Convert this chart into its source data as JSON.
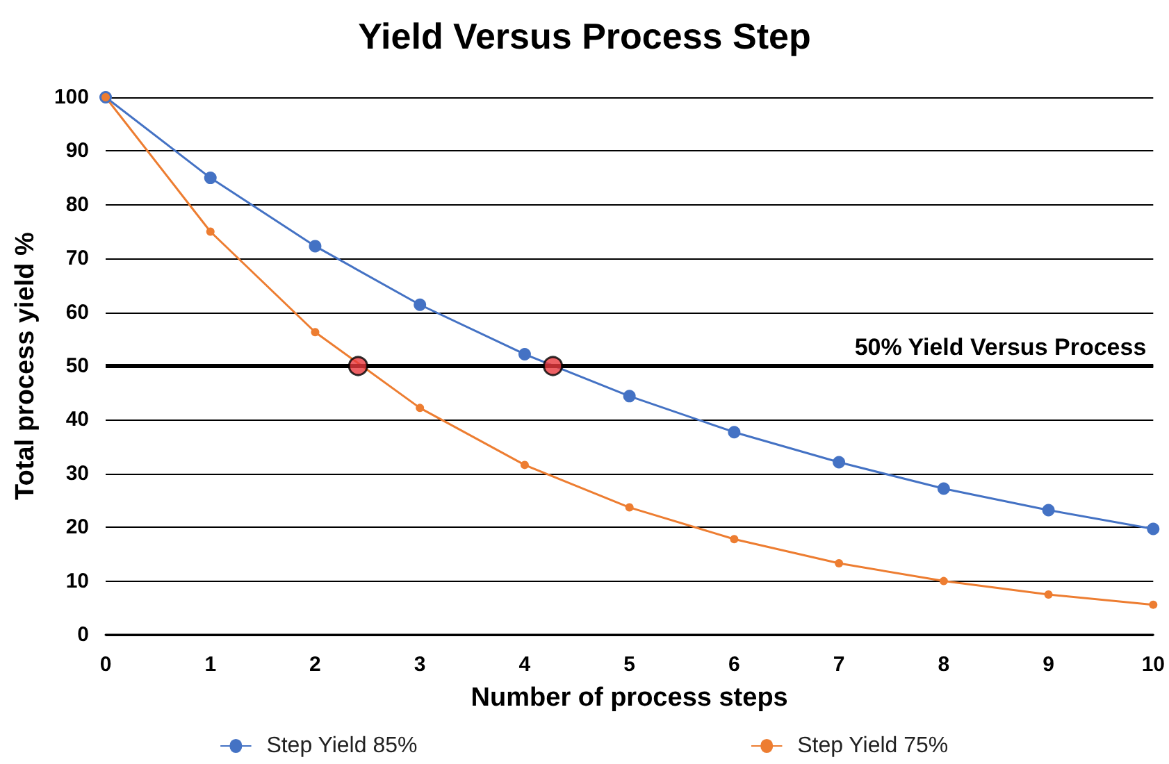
{
  "chart_data": {
    "type": "line",
    "title": "Yield Versus Process Step",
    "xlabel": "Number of process steps",
    "ylabel": "Total process yield %",
    "x": [
      0,
      1,
      2,
      3,
      4,
      5,
      6,
      7,
      8,
      9,
      10
    ],
    "series": [
      {
        "name": "Step Yield 85%",
        "color": "#4472c4",
        "values": [
          100,
          85,
          72.3,
          61.4,
          52.2,
          44.4,
          37.7,
          32.1,
          27.2,
          23.2,
          19.7
        ]
      },
      {
        "name": "Step Yield 75%",
        "color": "#ed7d31",
        "values": [
          100,
          75,
          56.3,
          42.2,
          31.6,
          23.7,
          17.8,
          13.3,
          10.0,
          7.5,
          5.6
        ]
      },
      {
        "type": "scatter",
        "color": "#e8383d",
        "x": [
          2.41,
          4.27
        ],
        "values": [
          50,
          50
        ]
      }
    ],
    "xlim": [
      0,
      10
    ],
    "xticks": [
      0,
      1,
      2,
      3,
      4,
      5,
      6,
      7,
      8,
      9,
      10
    ],
    "ylim": [
      0,
      100
    ],
    "yticks": [
      0,
      10,
      20,
      30,
      40,
      50,
      60,
      70,
      80,
      90,
      100
    ],
    "ref_lines": [
      {
        "axis": "y",
        "value": 50,
        "label": "50% Yield Versus Process",
        "color": "#000000"
      }
    ],
    "grid": "y",
    "legend": "bottom",
    "marker": "circle"
  }
}
